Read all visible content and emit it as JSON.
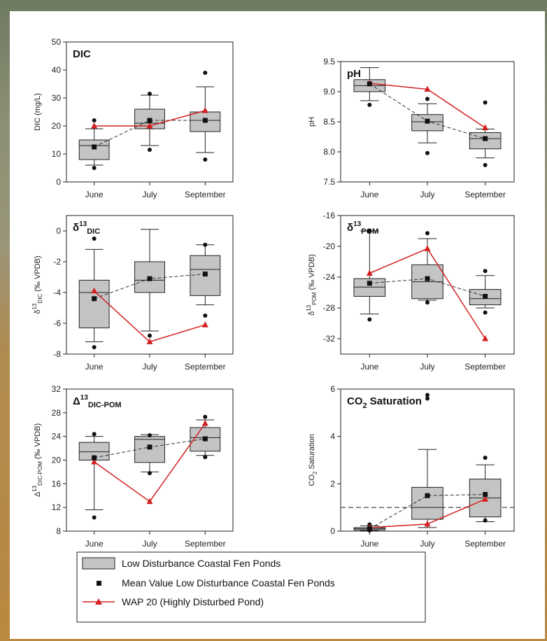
{
  "legend": [
    {
      "key": "box",
      "label": "Low Disturbance Coastal Fen Ponds"
    },
    {
      "key": "mean",
      "label": "Mean Value Low Disturbance Coastal Fen Ponds"
    },
    {
      "key": "wap",
      "label": "WAP 20 (Highly Disturbed Pond)"
    }
  ],
  "colors": {
    "box_fill": "#c4c4c4",
    "wap_line": "#d32020",
    "mean_marker": "#111111"
  },
  "chart_data": [
    {
      "id": "dic",
      "type": "box",
      "title": {
        "main": "DIC",
        "sub": "",
        "sup": ""
      },
      "ylabel": {
        "prefix": "DIC (mg/L)",
        "sup": "",
        "sub": "",
        "suffix": ""
      },
      "categories": [
        "June",
        "July",
        "September"
      ],
      "ylim": [
        0,
        50
      ],
      "yticks": [
        0,
        10,
        20,
        30,
        40,
        50
      ],
      "ytick_labels": [
        "0",
        "10",
        "20",
        "30",
        "40",
        "50"
      ],
      "boxes": [
        {
          "q1": 8,
          "median": 13,
          "q3": 15,
          "whisker_low": 6,
          "whisker_high": 19,
          "outliers": [
            5,
            22
          ]
        },
        {
          "q1": 19,
          "median": 21,
          "q3": 26,
          "whisker_low": 13,
          "whisker_high": 31,
          "outliers": [
            11.5,
            31.5
          ]
        },
        {
          "q1": 18,
          "median": 22,
          "q3": 25,
          "whisker_low": 10.5,
          "whisker_high": 34,
          "outliers": [
            8,
            39
          ]
        }
      ],
      "means": [
        12.5,
        22,
        22
      ],
      "wap20": [
        20,
        20,
        25.5
      ],
      "reference_line": null
    },
    {
      "id": "ph",
      "type": "box",
      "title": {
        "main": "pH",
        "sub": "",
        "sup": ""
      },
      "ylabel": {
        "prefix": "pH",
        "sup": "",
        "sub": "",
        "suffix": ""
      },
      "categories": [
        "June",
        "July",
        "September"
      ],
      "ylim": [
        7.5,
        9.5
      ],
      "yticks": [
        7.5,
        8.0,
        8.5,
        9.0,
        9.5
      ],
      "ytick_labels": [
        "7.5",
        "8.0",
        "8.5",
        "9.0",
        "9.5"
      ],
      "boxes": [
        {
          "q1": 9.0,
          "median": 9.1,
          "q3": 9.2,
          "whisker_low": 8.85,
          "whisker_high": 9.4,
          "outliers": [
            8.78
          ]
        },
        {
          "q1": 8.35,
          "median": 8.5,
          "q3": 8.62,
          "whisker_low": 8.15,
          "whisker_high": 8.8,
          "outliers": [
            7.98,
            8.88
          ]
        },
        {
          "q1": 8.05,
          "median": 8.22,
          "q3": 8.32,
          "whisker_low": 7.9,
          "whisker_high": 8.38,
          "outliers": [
            7.78,
            8.82
          ]
        }
      ],
      "means": [
        9.13,
        8.51,
        8.22
      ],
      "wap20": [
        9.14,
        9.04,
        8.4
      ],
      "reference_line": null
    },
    {
      "id": "d13c-dic",
      "type": "box",
      "title": {
        "main": "δ",
        "sup": "13",
        "sub": "DIC"
      },
      "ylabel": {
        "prefix": "δ",
        "sup": "13",
        "sub": "DIC",
        "suffix": " (‰ VPDB)"
      },
      "categories": [
        "June",
        "July",
        "September"
      ],
      "ylim": [
        -8,
        1
      ],
      "yticks": [
        -8,
        -6,
        -4,
        -2,
        0
      ],
      "ytick_labels": [
        "-8",
        "-6",
        "-4",
        "-2",
        "0"
      ],
      "boxes": [
        {
          "q1": -6.3,
          "median": -4.0,
          "q3": -3.2,
          "whisker_low": -7.2,
          "whisker_high": -1.2,
          "outliers": [
            -7.55,
            -0.5
          ]
        },
        {
          "q1": -4.0,
          "median": -3.2,
          "q3": -2.0,
          "whisker_low": -6.5,
          "whisker_high": 0.1,
          "outliers": [
            -6.8
          ]
        },
        {
          "q1": -4.2,
          "median": -2.5,
          "q3": -1.6,
          "whisker_low": -4.8,
          "whisker_high": -0.9,
          "outliers": [
            -5.5,
            -0.9
          ]
        }
      ],
      "means": [
        -4.4,
        -3.1,
        -2.8
      ],
      "wap20": [
        -3.9,
        -7.2,
        -6.1
      ],
      "reference_line": null
    },
    {
      "id": "d13c-pom",
      "type": "box",
      "title": {
        "main": "δ",
        "sup": "13",
        "sub": "POM"
      },
      "ylabel": {
        "prefix": "δ",
        "sup": "13",
        "sub": "POM",
        "suffix": " (‰ VPDB)"
      },
      "categories": [
        "June",
        "July",
        "September"
      ],
      "ylim": [
        -34,
        -16
      ],
      "yticks": [
        -32,
        -28,
        -24,
        -20,
        -16
      ],
      "ytick_labels": [
        "-32",
        "-28",
        "-24",
        "-20",
        "-16"
      ],
      "boxes": [
        {
          "q1": -26.5,
          "median": -25.3,
          "q3": -24.2,
          "whisker_low": -28.8,
          "whisker_high": -18.0,
          "outliers": [
            -29.5,
            -18.0
          ]
        },
        {
          "q1": -26.8,
          "median": -24.6,
          "q3": -22.4,
          "whisker_low": -27.0,
          "whisker_high": -19.0,
          "outliers": [
            -27.3,
            -18.3
          ]
        },
        {
          "q1": -27.6,
          "median": -26.8,
          "q3": -25.6,
          "whisker_low": -28.0,
          "whisker_high": -23.8,
          "outliers": [
            -28.6,
            -23.2
          ]
        }
      ],
      "means": [
        -24.8,
        -24.2,
        -26.5
      ],
      "wap20": [
        -23.5,
        -20.3,
        -32.0
      ],
      "reference_line": null
    },
    {
      "id": "big-delta",
      "type": "box",
      "title": {
        "main": "Δ",
        "sup": "13",
        "sub": "DIC-POM"
      },
      "ylabel": {
        "prefix": "Δ",
        "sup": "13",
        "sub": "DIC-POM",
        "suffix": " (‰ VPDB)"
      },
      "categories": [
        "June",
        "July",
        "September"
      ],
      "ylim": [
        8,
        32
      ],
      "yticks": [
        8,
        12,
        16,
        20,
        24,
        28,
        32
      ],
      "ytick_labels": [
        "8",
        "12",
        "16",
        "20",
        "24",
        "28",
        "32"
      ],
      "boxes": [
        {
          "q1": 20.0,
          "median": 21.4,
          "q3": 23.0,
          "whisker_low": 11.6,
          "whisker_high": 24.0,
          "outliers": [
            10.3,
            24.4
          ]
        },
        {
          "q1": 19.6,
          "median": 23.5,
          "q3": 24.0,
          "whisker_low": 18.0,
          "whisker_high": 24.3,
          "outliers": [
            17.8,
            24.2
          ]
        },
        {
          "q1": 21.5,
          "median": 23.8,
          "q3": 25.5,
          "whisker_low": 20.8,
          "whisker_high": 26.8,
          "outliers": [
            20.5,
            27.3
          ]
        }
      ],
      "means": [
        20.4,
        22.2,
        23.6
      ],
      "wap20": [
        19.7,
        13.0,
        26.2
      ],
      "reference_line": null
    },
    {
      "id": "co2",
      "type": "box",
      "title": {
        "main": "CO",
        "sub": "2",
        "sup": "",
        "suffix": " Saturation"
      },
      "ylabel": {
        "prefix": "CO",
        "sup": "",
        "sub": "2",
        "suffix": " Saturation"
      },
      "categories": [
        "June",
        "July",
        "September"
      ],
      "ylim": [
        0,
        6
      ],
      "yticks": [
        0,
        2,
        4,
        6
      ],
      "ytick_labels": [
        "0",
        "2",
        "4",
        "6"
      ],
      "boxes": [
        {
          "q1": 0.05,
          "median": 0.1,
          "q3": 0.15,
          "whisker_low": 0.02,
          "whisker_high": 0.22,
          "outliers": [
            0.03,
            0.28
          ]
        },
        {
          "q1": 0.5,
          "median": 1.0,
          "q3": 1.85,
          "whisker_low": 0.15,
          "whisker_high": 3.45,
          "outliers": [
            5.6,
            5.75
          ]
        },
        {
          "q1": 0.6,
          "median": 1.4,
          "q3": 2.2,
          "whisker_low": 0.4,
          "whisker_high": 2.8,
          "outliers": [
            0.45,
            3.1
          ]
        }
      ],
      "means": [
        0.1,
        1.5,
        1.55
      ],
      "wap20": [
        0.15,
        0.3,
        1.35
      ],
      "reference_line": 1.0
    }
  ]
}
